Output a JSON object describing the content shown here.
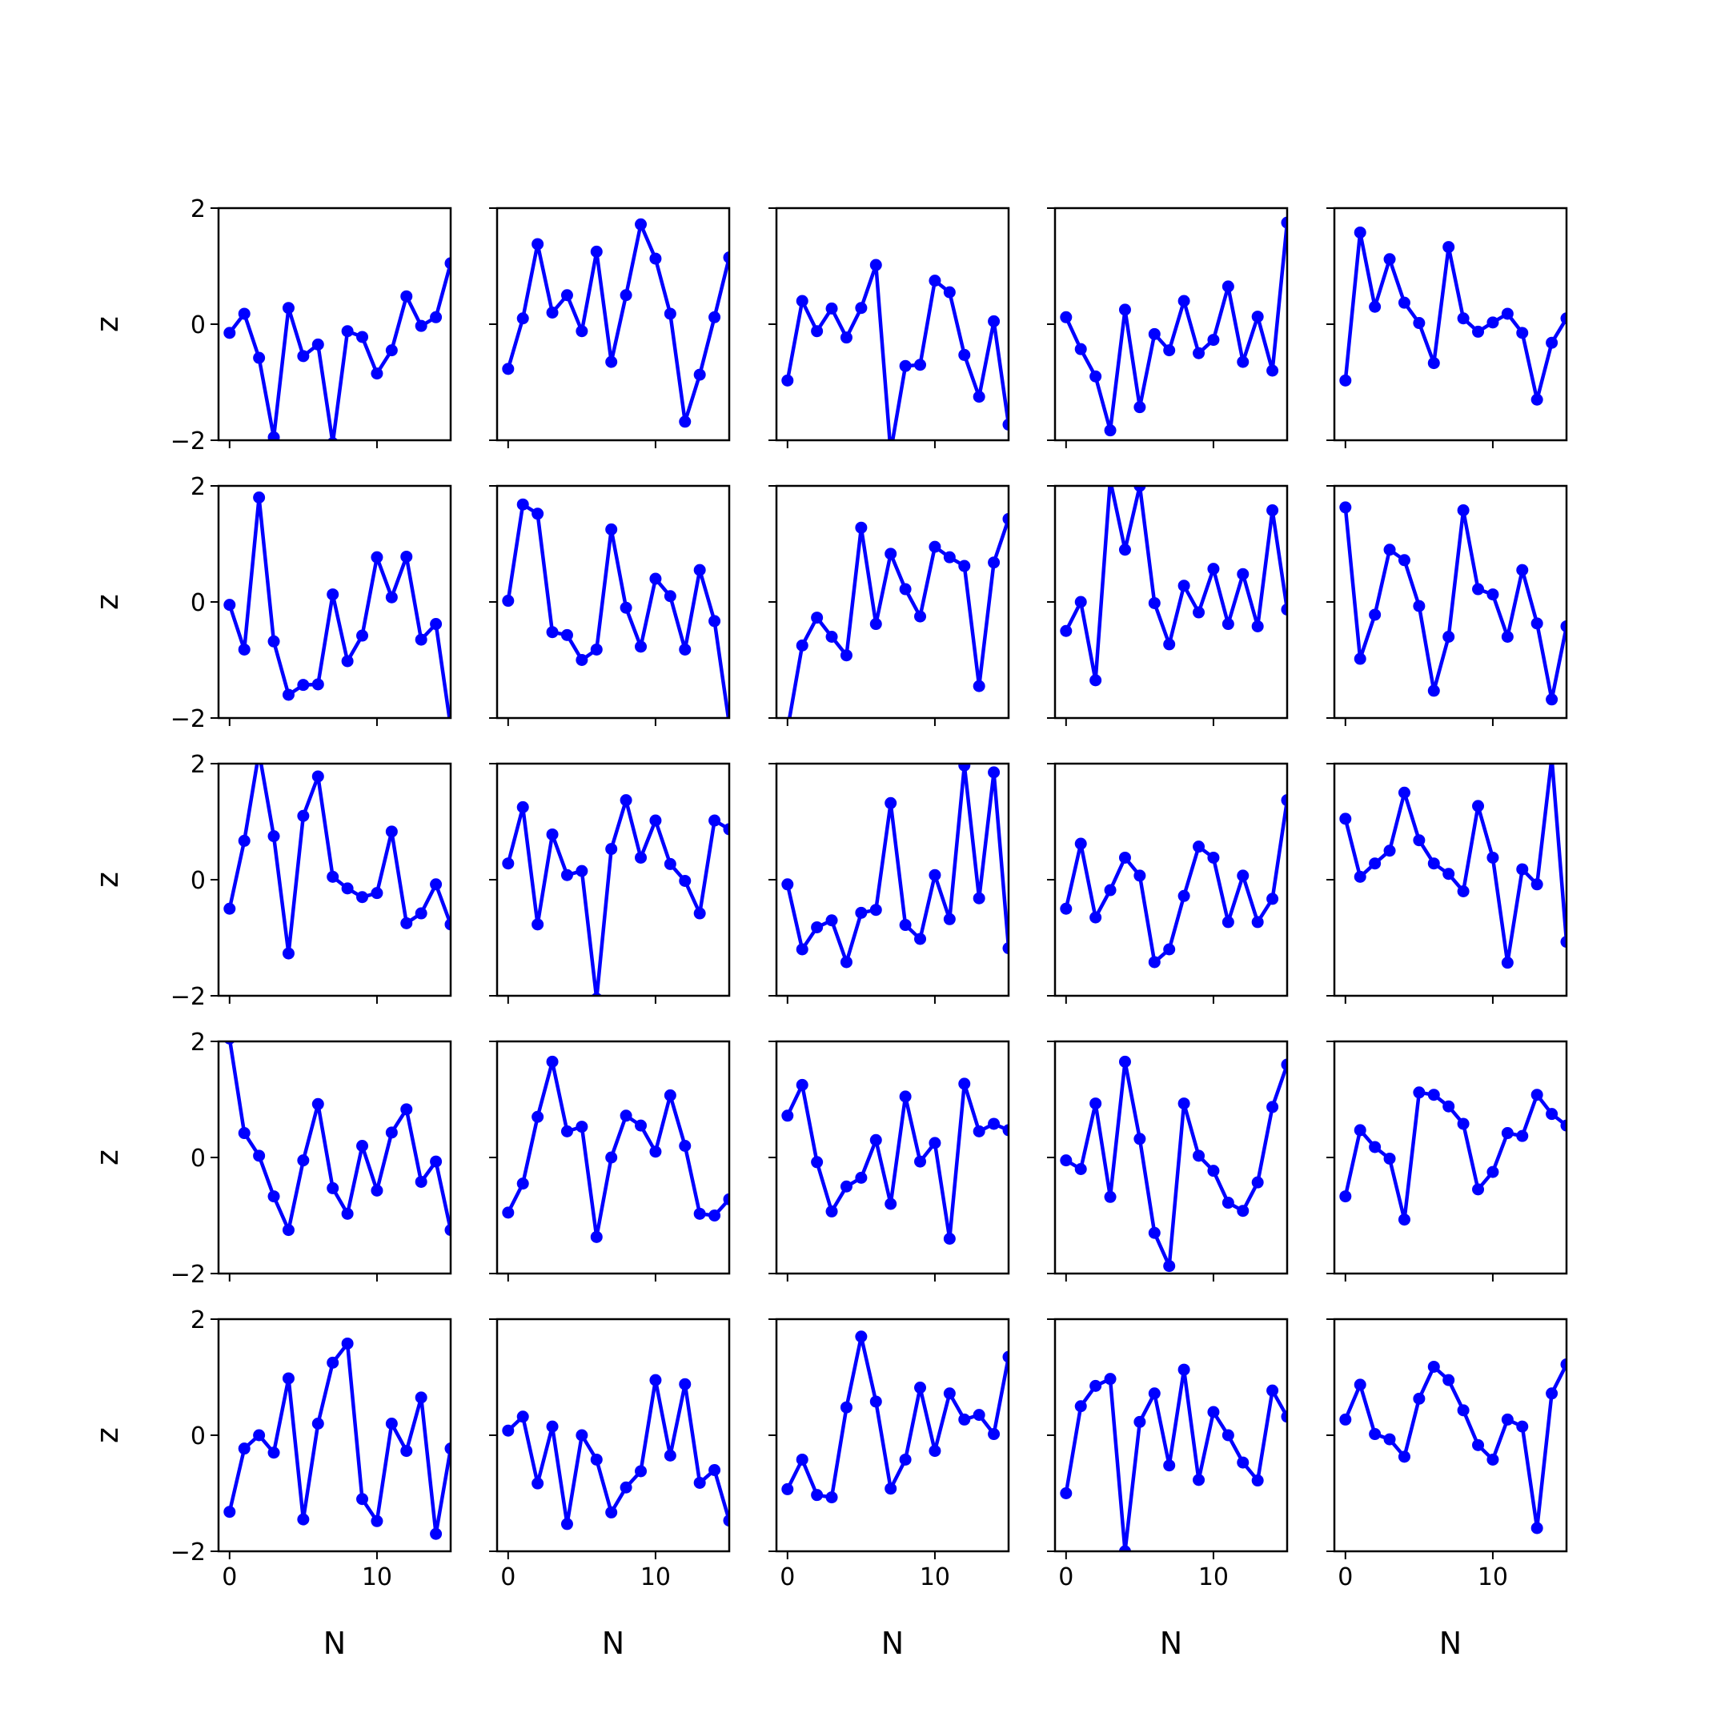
{
  "figure": {
    "rows": 5,
    "cols": 5,
    "line_color": "#0000ff",
    "axis_color": "#000000",
    "background": "#ffffff"
  },
  "chart_data": {
    "type": "line",
    "layout": "grid",
    "xlabel": "N",
    "ylabel": "z",
    "xlim": [
      -0.75,
      15.0
    ],
    "ylim": [
      -2,
      2
    ],
    "x_ticks": [
      0,
      10
    ],
    "x_tick_labels": [
      "0",
      "10"
    ],
    "y_ticks": [
      -2,
      0,
      2
    ],
    "y_tick_labels": [
      "−2",
      "0",
      "2"
    ],
    "marker": "circle",
    "x": [
      0,
      1,
      2,
      3,
      4,
      5,
      6,
      7,
      8,
      9,
      10,
      11,
      12,
      13,
      14,
      15
    ],
    "panels": [
      [
        -0.15,
        0.18,
        -0.58,
        -1.95,
        0.28,
        -0.55,
        -0.35,
        -2.05,
        -0.12,
        -0.22,
        -0.85,
        -0.45,
        0.48,
        -0.03,
        0.12,
        1.05
      ],
      [
        -0.77,
        0.1,
        1.38,
        0.2,
        0.5,
        -0.12,
        1.25,
        -0.65,
        0.5,
        1.72,
        1.13,
        0.18,
        -1.68,
        -0.87,
        0.12,
        1.15
      ],
      [
        -0.97,
        0.4,
        -0.12,
        0.27,
        -0.23,
        0.28,
        1.02,
        -2.2,
        -0.72,
        -0.7,
        0.75,
        0.55,
        -0.53,
        -1.25,
        0.05,
        -1.73
      ],
      [
        0.12,
        -0.43,
        -0.9,
        -1.83,
        0.25,
        -1.43,
        -0.17,
        -0.45,
        0.4,
        -0.5,
        -0.27,
        0.65,
        -0.65,
        0.13,
        -0.8,
        1.75
      ],
      [
        -0.97,
        1.58,
        0.3,
        1.12,
        0.37,
        0.02,
        -0.67,
        1.33,
        0.1,
        -0.13,
        0.03,
        0.18,
        -0.15,
        -1.3,
        -0.32,
        0.1
      ],
      [
        -0.05,
        -0.82,
        1.8,
        -0.68,
        -1.6,
        -1.43,
        -1.42,
        0.13,
        -1.02,
        -0.58,
        0.77,
        0.08,
        0.78,
        -0.65,
        -0.38,
        -2.15
      ],
      [
        0.02,
        1.68,
        1.52,
        -0.52,
        -0.57,
        -1.0,
        -0.82,
        1.25,
        -0.1,
        -0.77,
        0.4,
        0.1,
        -0.82,
        0.55,
        -0.33,
        -2.1
      ],
      [
        -2.2,
        -0.75,
        -0.27,
        -0.6,
        -0.92,
        1.28,
        -0.38,
        0.83,
        0.22,
        -0.25,
        0.95,
        0.77,
        0.62,
        -1.45,
        0.68,
        1.43
      ],
      [
        -0.5,
        0.0,
        -1.35,
        2.1,
        0.9,
        2.0,
        -0.02,
        -0.73,
        0.28,
        -0.18,
        0.57,
        -0.38,
        0.48,
        -0.42,
        1.58,
        -0.13
      ],
      [
        1.63,
        -0.98,
        -0.22,
        0.9,
        0.72,
        -0.07,
        -1.53,
        -0.6,
        1.58,
        0.22,
        0.13,
        -0.6,
        0.55,
        -0.37,
        -1.68,
        -0.42
      ],
      [
        -0.5,
        0.67,
        2.2,
        0.75,
        -1.27,
        1.1,
        1.78,
        0.05,
        -0.15,
        -0.3,
        -0.23,
        0.83,
        -0.75,
        -0.58,
        -0.08,
        -0.77
      ],
      [
        0.28,
        1.25,
        -0.77,
        0.78,
        0.08,
        0.15,
        -2.05,
        0.53,
        1.37,
        0.38,
        1.02,
        0.27,
        -0.02,
        -0.58,
        1.02,
        0.87
      ],
      [
        -0.08,
        -1.2,
        -0.82,
        -0.7,
        -1.42,
        -0.57,
        -0.52,
        1.32,
        -0.78,
        -1.02,
        0.08,
        -0.68,
        1.97,
        -0.32,
        1.85,
        -1.18
      ],
      [
        -0.5,
        0.62,
        -0.65,
        -0.18,
        0.38,
        0.07,
        -1.42,
        -1.2,
        -0.28,
        0.57,
        0.38,
        -0.73,
        0.07,
        -0.73,
        -0.33,
        1.37
      ],
      [
        1.05,
        0.05,
        0.28,
        0.5,
        1.5,
        0.68,
        0.28,
        0.1,
        -0.2,
        1.27,
        0.38,
        -1.43,
        0.18,
        -0.08,
        2.1,
        -1.07
      ],
      [
        2.05,
        0.42,
        0.03,
        -0.67,
        -1.25,
        -0.05,
        0.92,
        -0.53,
        -0.97,
        0.2,
        -0.57,
        0.43,
        0.83,
        -0.42,
        -0.07,
        -1.25
      ],
      [
        -0.95,
        -0.45,
        0.7,
        1.65,
        0.45,
        0.53,
        -1.37,
        0.0,
        0.72,
        0.55,
        0.1,
        1.07,
        0.2,
        -0.97,
        -1.0,
        -0.72
      ],
      [
        0.72,
        1.25,
        -0.08,
        -0.93,
        -0.5,
        -0.35,
        0.3,
        -0.8,
        1.05,
        -0.07,
        0.25,
        -1.4,
        1.27,
        0.45,
        0.58,
        0.47
      ],
      [
        -0.05,
        -0.2,
        0.93,
        -0.68,
        1.65,
        0.32,
        -1.3,
        -1.87,
        0.93,
        0.03,
        -0.23,
        -0.78,
        -0.92,
        -0.43,
        0.87,
        1.6
      ],
      [
        -0.67,
        0.47,
        0.18,
        -0.02,
        -1.07,
        1.12,
        1.08,
        0.88,
        0.58,
        -0.55,
        -0.25,
        0.42,
        0.37,
        1.08,
        0.75,
        0.55
      ],
      [
        -1.32,
        -0.23,
        0.0,
        -0.3,
        0.98,
        -1.45,
        0.2,
        1.25,
        1.58,
        -1.1,
        -1.48,
        0.2,
        -0.27,
        0.65,
        -1.7,
        -0.23
      ],
      [
        0.08,
        0.32,
        -0.83,
        0.15,
        -1.53,
        0.0,
        -0.42,
        -1.33,
        -0.9,
        -0.62,
        0.95,
        -0.35,
        0.88,
        -0.82,
        -0.6,
        -1.47
      ],
      [
        -0.93,
        -0.42,
        -1.03,
        -1.07,
        0.48,
        1.7,
        0.58,
        -0.92,
        -0.42,
        0.82,
        -0.27,
        0.72,
        0.27,
        0.35,
        0.02,
        1.35
      ],
      [
        -1.0,
        0.5,
        0.85,
        0.97,
        -2.0,
        0.23,
        0.72,
        -0.52,
        1.13,
        -0.77,
        0.4,
        0.0,
        -0.47,
        -0.78,
        0.77,
        0.32
      ],
      [
        0.27,
        0.87,
        0.02,
        -0.07,
        -0.37,
        0.63,
        1.18,
        0.95,
        0.43,
        -0.17,
        -0.42,
        0.27,
        0.15,
        -1.6,
        0.72,
        1.22
      ]
    ]
  }
}
